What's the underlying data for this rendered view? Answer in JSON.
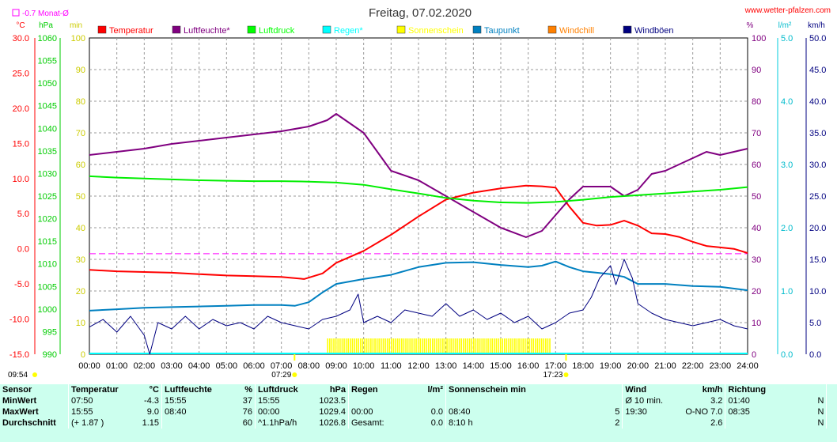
{
  "header": {
    "title": "Freitag, 07.02.2020",
    "website": "www.wetter-pfalzen.com",
    "month_avg_label": "-0.7 Monat-Ø"
  },
  "axis_units": {
    "temp": "°C",
    "pressure": "hPa",
    "minutes": "min",
    "percent": "%",
    "rain": "l/m²",
    "wind": "km/h"
  },
  "legend": [
    {
      "label": "Temperatur",
      "color": "#ff0000"
    },
    {
      "label": "Luftfeuchte*",
      "color": "#800080"
    },
    {
      "label": "Luftdruck",
      "color": "#00ff00"
    },
    {
      "label": "Regen*",
      "color": "#00ffff"
    },
    {
      "label": "Sonnenschein",
      "color": "#ffff00"
    },
    {
      "label": "Taupunkt",
      "color": "#0080c0"
    },
    {
      "label": "Windchill",
      "color": "#ff8000"
    },
    {
      "label": "Windböen",
      "color": "#000080"
    }
  ],
  "markers": {
    "sunrise": "07:29",
    "sunset": "17:23",
    "update_time": "09:54"
  },
  "chart_data": {
    "type": "line",
    "x_range_hours": [
      0,
      24
    ],
    "x_ticks": [
      "00:00",
      "01:00",
      "02:00",
      "03:00",
      "04:00",
      "05:00",
      "06:00",
      "07:00",
      "08:00",
      "09:00",
      "10:00",
      "11:00",
      "12:00",
      "13:00",
      "14:00",
      "15:00",
      "16:00",
      "17:00",
      "18:00",
      "19:00",
      "20:00",
      "21:00",
      "22:00",
      "23:00",
      "24:00"
    ],
    "axes": {
      "temperature": {
        "min": -15,
        "max": 30,
        "ticks": [
          "30.0",
          "25.0",
          "20.0",
          "15.0",
          "10.0",
          "5.0",
          "0.0",
          "-5.0",
          "-10.0",
          "-15.0"
        ]
      },
      "pressure": {
        "min": 990,
        "max": 1060,
        "ticks": [
          "1060",
          "1055",
          "1050",
          "1045",
          "1040",
          "1035",
          "1030",
          "1025",
          "1020",
          "1015",
          "1010",
          "1005",
          "1000",
          "995",
          "990"
        ]
      },
      "minutes": {
        "min": 0,
        "max": 100,
        "ticks": [
          "100",
          "90",
          "80",
          "70",
          "60",
          "50",
          "40",
          "30",
          "20",
          "10",
          "0"
        ]
      },
      "percent": {
        "min": 0,
        "max": 100,
        "ticks": [
          "100",
          "90",
          "80",
          "70",
          "60",
          "50",
          "40",
          "30",
          "20",
          "10",
          "0"
        ]
      },
      "rain": {
        "min": 0,
        "max": 5,
        "ticks": [
          "5.0",
          "4.0",
          "3.0",
          "2.0",
          "1.0",
          "0.0"
        ]
      },
      "wind": {
        "min": 0,
        "max": 50,
        "ticks": [
          "50.0",
          "45.0",
          "40.0",
          "35.0",
          "30.0",
          "25.0",
          "20.0",
          "15.0",
          "10.0",
          "5.0",
          "0.0"
        ]
      }
    },
    "month_avg_temp": -0.7,
    "sunshine_window": [
      "08:40",
      "16:50"
    ],
    "series": [
      {
        "name": "Temperatur",
        "axis": "temperature",
        "x": [
          0,
          1,
          2,
          3,
          4,
          5,
          6,
          7,
          7.83,
          8.5,
          9,
          10,
          11,
          12,
          13,
          14,
          15,
          15.92,
          16.5,
          17,
          17.5,
          18,
          18.5,
          19,
          19.5,
          20,
          20.5,
          21,
          21.5,
          22,
          22.5,
          23,
          23.5,
          24
        ],
        "y": [
          -3.0,
          -3.2,
          -3.3,
          -3.4,
          -3.6,
          -3.8,
          -3.9,
          -4.0,
          -4.3,
          -3.5,
          -2.0,
          -0.3,
          2.0,
          4.6,
          7.0,
          8.0,
          8.6,
          9.0,
          8.9,
          8.7,
          6.0,
          3.7,
          3.3,
          3.4,
          4.0,
          3.3,
          2.2,
          2.1,
          1.7,
          1.0,
          0.4,
          0.2,
          0.0,
          -0.6
        ]
      },
      {
        "name": "Luftfeuchte*",
        "axis": "percent",
        "x": [
          0,
          1,
          2,
          3,
          4,
          5,
          6,
          7,
          8,
          8.67,
          9,
          10,
          11,
          12,
          13,
          14,
          15,
          15.92,
          16.5,
          17,
          17.5,
          18,
          18.5,
          19,
          19.5,
          20,
          20.5,
          21,
          21.5,
          22,
          22.5,
          23,
          23.5,
          24
        ],
        "y": [
          63,
          64,
          65,
          66.5,
          67.5,
          68.5,
          69.5,
          70.5,
          72,
          74,
          76,
          70,
          58,
          55,
          50,
          45,
          40,
          37,
          39,
          44,
          49,
          53,
          53,
          53,
          50,
          52,
          57,
          58,
          60,
          62,
          64,
          63,
          64,
          65
        ]
      },
      {
        "name": "Luftdruck",
        "axis": "pressure",
        "x": [
          0,
          1,
          2,
          3,
          4,
          5,
          6,
          7,
          8,
          9,
          10,
          11,
          12,
          13,
          14,
          15,
          16,
          17,
          18,
          19,
          20,
          21,
          22,
          23,
          24
        ],
        "y": [
          1029.4,
          1029.1,
          1028.9,
          1028.7,
          1028.5,
          1028.4,
          1028.3,
          1028.3,
          1028.2,
          1028.0,
          1027.5,
          1026.5,
          1025.6,
          1024.6,
          1024.0,
          1023.6,
          1023.5,
          1023.7,
          1024.2,
          1024.8,
          1025.2,
          1025.6,
          1026.0,
          1026.4,
          1027.0
        ]
      },
      {
        "name": "Taupunkt",
        "axis": "temperature",
        "x": [
          0,
          1,
          2,
          3,
          4,
          5,
          6,
          7,
          7.5,
          8,
          8.5,
          9,
          10,
          11,
          12,
          13,
          14,
          15,
          16,
          16.5,
          17,
          17.5,
          18,
          18.5,
          19,
          19.5,
          20,
          21,
          22,
          23,
          24
        ],
        "y": [
          -8.8,
          -8.6,
          -8.4,
          -8.3,
          -8.2,
          -8.1,
          -8.0,
          -8.0,
          -8.1,
          -7.6,
          -6.2,
          -5.0,
          -4.3,
          -3.7,
          -2.6,
          -2.0,
          -1.9,
          -2.3,
          -2.6,
          -2.4,
          -1.8,
          -2.6,
          -3.2,
          -3.4,
          -3.6,
          -4.0,
          -5.0,
          -5.0,
          -5.3,
          -5.4,
          -5.9
        ]
      },
      {
        "name": "Windböen",
        "axis": "wind",
        "x": [
          0,
          0.5,
          1,
          1.5,
          2,
          2.2,
          2.5,
          3,
          3.5,
          4,
          4.5,
          5,
          5.5,
          6,
          6.5,
          7,
          7.5,
          8,
          8.5,
          9,
          9.5,
          9.8,
          10,
          10.5,
          11,
          11.5,
          12,
          12.5,
          13,
          13.5,
          14,
          14.5,
          15,
          15.5,
          16,
          16.5,
          17,
          17.5,
          18,
          18.3,
          18.6,
          19,
          19.2,
          19.5,
          19.8,
          20,
          20.5,
          21,
          21.5,
          22,
          22.5,
          23,
          23.5,
          24
        ],
        "y": [
          4.3,
          5.5,
          3.5,
          6.0,
          3.0,
          0.0,
          5.0,
          4.0,
          6.0,
          4.0,
          5.5,
          4.5,
          5.0,
          4.0,
          6.0,
          5.0,
          4.5,
          4.0,
          5.5,
          6.0,
          7.0,
          9.5,
          5.0,
          6.0,
          5.0,
          7.0,
          6.5,
          6.0,
          8.0,
          6.0,
          7.0,
          5.5,
          6.5,
          5.0,
          6.0,
          4.0,
          5.0,
          6.5,
          7.0,
          9.0,
          12.0,
          14.0,
          11.0,
          15.0,
          12.0,
          8.0,
          6.5,
          5.5,
          5.0,
          4.5,
          5.0,
          5.5,
          4.5,
          4.0
        ]
      }
    ],
    "sunrise_hour": 7.48,
    "sunset_hour": 17.38
  },
  "table": {
    "headers": [
      "Sensor",
      "Temperatur",
      "°C",
      "Luftfeuchte",
      "%",
      "Luftdruck",
      "hPa",
      "Regen",
      "l/m²",
      "Sonnenschein min",
      "Wind",
      "km/h",
      "Richtung"
    ],
    "rows": [
      [
        "MinWert",
        "07:50",
        "-4.3",
        "15:55",
        "37",
        "15:55",
        "1023.5",
        "",
        "",
        "",
        "",
        "Ø 10 min.",
        "3.2",
        "01:40",
        "N"
      ],
      [
        "MaxWert",
        "15:55",
        "9.0",
        "08:40",
        "76",
        "00:00",
        "1029.4",
        "00:00",
        "0.0",
        "08:40",
        "5",
        "19:30",
        "O-NO 7.0",
        "08:35",
        "N"
      ],
      [
        "Durchschnitt",
        "(+ 1.87 )",
        "1.15",
        "",
        "60",
        "^1.1hPa/h",
        "1026.8",
        "Gesamt:",
        "0.0",
        "8:10 h",
        "2",
        "",
        "2.6",
        "",
        "N"
      ]
    ]
  }
}
